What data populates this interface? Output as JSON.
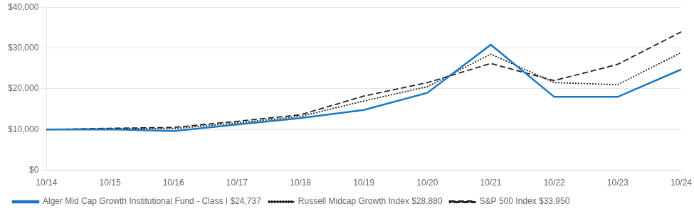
{
  "chart_data": {
    "type": "line",
    "categories": [
      "10/14",
      "10/15",
      "10/16",
      "10/17",
      "10/18",
      "10/19",
      "10/20",
      "10/21",
      "10/22",
      "10/23",
      "10/24"
    ],
    "series": [
      {
        "name": "S&P 500 Index $33,950",
        "color": "#222222",
        "line_style": "dashed",
        "values": [
          10000,
          10300,
          10500,
          12000,
          13600,
          18200,
          21500,
          26200,
          22000,
          26000,
          33950
        ]
      },
      {
        "name": "Russell Midcap Growth Index $28,880",
        "color": "#222222",
        "line_style": "dotted",
        "values": [
          10000,
          10200,
          10200,
          11600,
          13200,
          17000,
          20500,
          28500,
          21500,
          21000,
          28880
        ]
      },
      {
        "name": "Alger Mid Cap Growth Institutional Fund - Class I $24,737",
        "color": "#1a78c2",
        "line_style": "solid",
        "values": [
          10000,
          10050,
          9600,
          11200,
          12800,
          14800,
          19000,
          30800,
          18000,
          18000,
          24737
        ]
      }
    ],
    "ylim": [
      0,
      40000
    ],
    "yticks": [
      {
        "value": 0,
        "label": "$0"
      },
      {
        "value": 10000,
        "label": "$10,000"
      },
      {
        "value": 20000,
        "label": "$20,000"
      },
      {
        "value": 30000,
        "label": "$30,000"
      },
      {
        "value": 40000,
        "label": "$40,000"
      }
    ],
    "grid": true,
    "legend": "bottom"
  }
}
